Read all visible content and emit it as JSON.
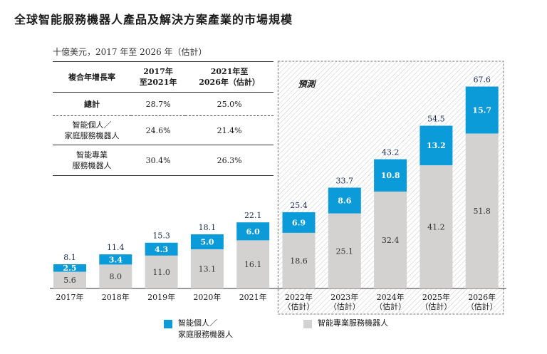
{
  "title": "全球智能服務機器人產品及解決方案產業的市場規模",
  "unit_note": "十億美元，2017 年至 2026 年（估計）",
  "forecast_label": "預測",
  "cagr_table": {
    "header": [
      "複合年增長率",
      "2017年\n至2021年",
      "2021年至\n2026年（估計）"
    ],
    "rows": [
      {
        "label": "總計",
        "v1": "28.7%",
        "v2": "25.0%"
      },
      {
        "label": "智能個人／\n家庭服務機器人",
        "v1": "24.6%",
        "v2": "21.4%"
      },
      {
        "label": "智能專業\n服務機器人",
        "v1": "30.4%",
        "v2": "26.3%"
      }
    ]
  },
  "chart_data": {
    "type": "bar",
    "stacked": true,
    "title": "全球智能服務機器人產品及解決方案產業的市場規模",
    "ylabel": "十億美元",
    "categories": [
      "2017年",
      "2018年",
      "2019年",
      "2020年",
      "2021年",
      "2022年\n（估計）",
      "2023年\n（估計）",
      "2024年\n（估計）",
      "2025年\n（估計）",
      "2026年\n（估計）"
    ],
    "forecast_start_index": 5,
    "series": [
      {
        "name": "智能專業服務機器人",
        "color": "#d3d2d0",
        "values": [
          5.6,
          8.0,
          11.0,
          13.1,
          16.1,
          18.6,
          25.1,
          32.4,
          41.2,
          51.8
        ]
      },
      {
        "name": "智能個人／家庭服務機器人",
        "color": "#0b9bd8",
        "values": [
          2.5,
          3.4,
          4.3,
          5.0,
          6.0,
          6.9,
          8.6,
          10.8,
          13.2,
          15.7
        ]
      }
    ],
    "totals": [
      8.1,
      11.4,
      15.3,
      18.1,
      22.1,
      25.4,
      33.7,
      43.2,
      54.5,
      67.6
    ],
    "value_labels_bottom": [
      "5.6",
      "8.0",
      "11.0",
      "13.1",
      "16.1",
      "18.6",
      "25.1",
      "32.4",
      "41.2",
      "51.8"
    ],
    "value_labels_top": [
      "2.5",
      "3.4",
      "4.3",
      "5.0",
      "6.0",
      "6.9",
      "8.6",
      "10.8",
      "13.2",
      "15.7"
    ],
    "total_labels": [
      "8.1",
      "11.4",
      "15.3",
      "18.1",
      "22.1",
      "25.4",
      "33.7",
      "43.2",
      "54.5",
      "67.6"
    ],
    "ylim": [
      0,
      70
    ]
  },
  "legend": {
    "personal": {
      "label": "智能個人／\n家庭服務機器人",
      "color": "#0b9bd8"
    },
    "professional": {
      "label": "智能專業服務機器人",
      "color": "#d3d2d0"
    }
  }
}
